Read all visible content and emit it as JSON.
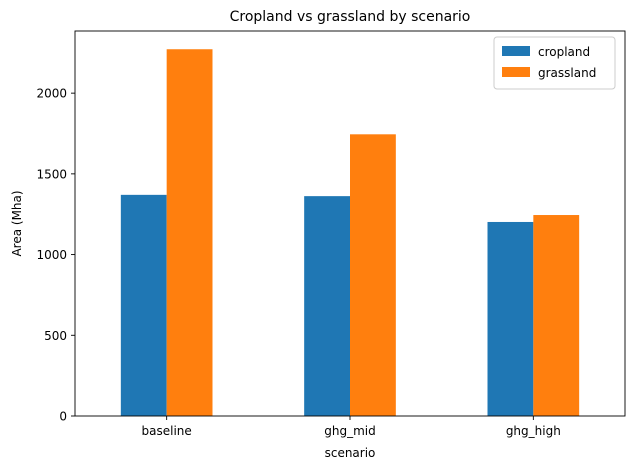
{
  "chart_data": {
    "type": "bar",
    "title": "Cropland vs grassland by scenario",
    "xlabel": "scenario",
    "ylabel": "Area (Mha)",
    "categories": [
      "baseline",
      "ghg_mid",
      "ghg_high"
    ],
    "series": [
      {
        "name": "cropland",
        "color": "#1f77b4",
        "values": [
          1370,
          1362,
          1202
        ]
      },
      {
        "name": "grassland",
        "color": "#ff7f0e",
        "values": [
          2272,
          1745,
          1245
        ]
      }
    ],
    "ylim": [
      0,
      2385
    ],
    "yticks": [
      0,
      500,
      1000,
      1500,
      2000
    ],
    "grid": false,
    "legend_position": "top-right"
  }
}
